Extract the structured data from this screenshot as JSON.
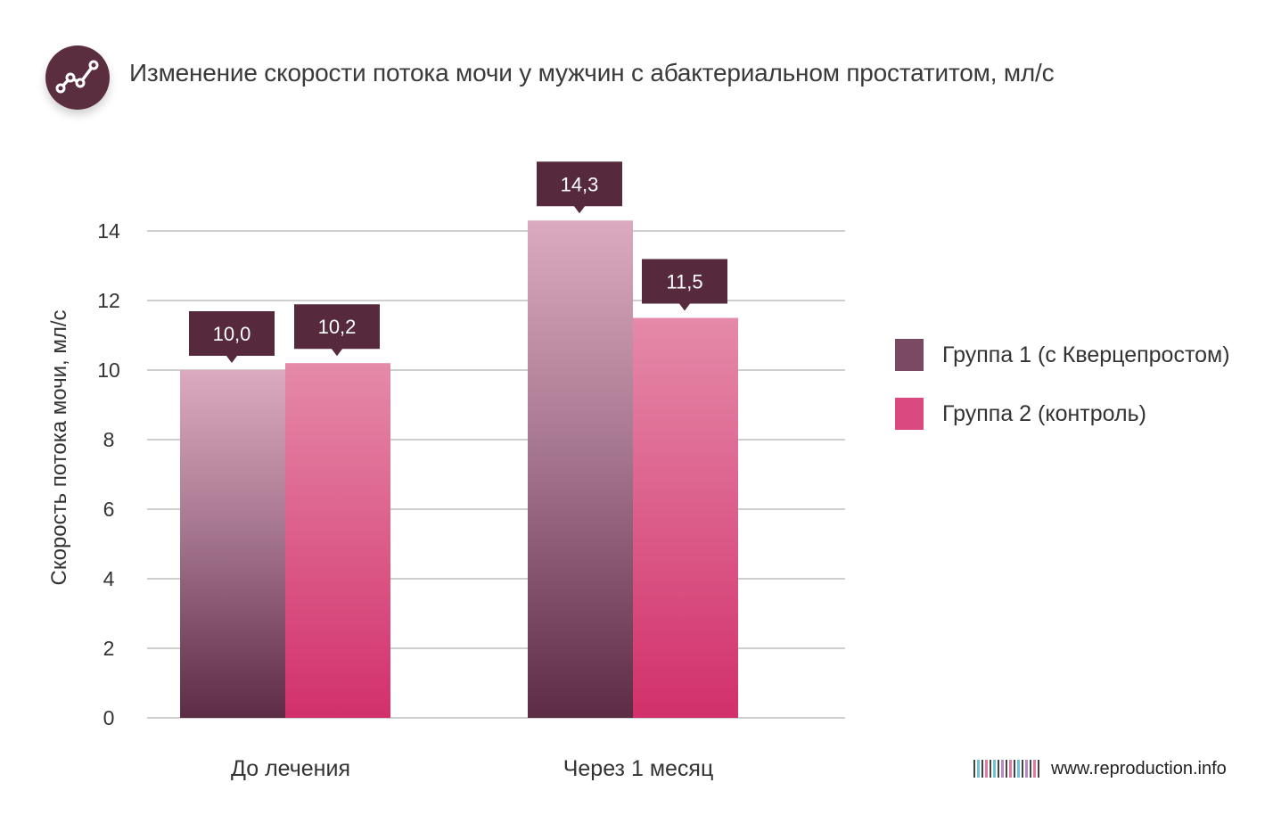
{
  "header": {
    "title": "Изменение скорости потока мочи у мужчин с абактериальном простатитом, мл/с",
    "icon": "trend-line-icon"
  },
  "chart_data": {
    "type": "bar",
    "title": "Изменение скорости потока мочи у мужчин с абактериальном простатитом, мл/с",
    "xlabel": "",
    "ylabel": "Скорость потока мочи, мл/с",
    "ylim": [
      0,
      14
    ],
    "yticks": [
      "0",
      "2",
      "4",
      "6",
      "8",
      "10",
      "12",
      "14"
    ],
    "categories": [
      "До лечения",
      "Через 1 месяц"
    ],
    "series": [
      {
        "name": "Группа 1 (с Кверцепростом)",
        "values": [
          10.0,
          14.3
        ],
        "labels": [
          "10,0",
          "14,3"
        ],
        "color": "#7a4a62"
      },
      {
        "name": "Группа 2 (контроль)",
        "values": [
          10.2,
          11.5
        ],
        "labels": [
          "10,2",
          "11,5"
        ],
        "color": "#d84a80"
      }
    ],
    "grid": true,
    "legend": "right",
    "label_box_color": "#56293c"
  },
  "footer": {
    "site": "www.reproduction.info"
  }
}
